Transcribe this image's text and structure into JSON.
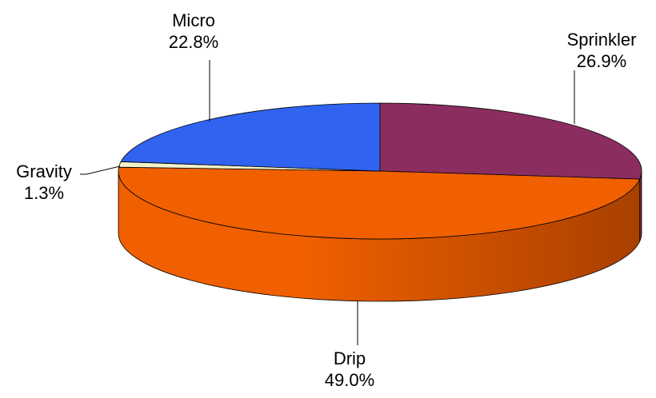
{
  "chart_data": {
    "type": "pie",
    "title": "",
    "style": "3d-tilted",
    "start_angle_deg": -90,
    "direction": "clockwise",
    "slices": [
      {
        "label": "Sprinkler",
        "value": 26.9,
        "value_label": "26.9%",
        "color": "#8B2E5F",
        "side_color": "#5A1A3C"
      },
      {
        "label": "Drip",
        "value": 49.0,
        "value_label": "49.0%",
        "color": "#F06000",
        "side_color": "#A84000"
      },
      {
        "label": "Gravity",
        "value": 1.3,
        "value_label": "1.3%",
        "color": "#F2F2C8",
        "side_color": "#C8C89A"
      },
      {
        "label": "Micro",
        "value": 22.8,
        "value_label": "22.8%",
        "color": "#2F63F0",
        "side_color": "#1E40A0"
      }
    ],
    "legend": "none",
    "slice_edge_color": "#000000"
  }
}
